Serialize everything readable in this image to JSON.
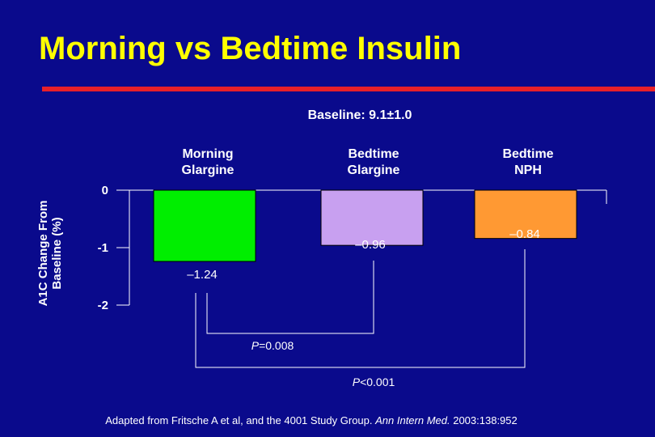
{
  "title": "Morning vs Bedtime Insulin",
  "baseline_label": "Baseline: 9.1±1.0",
  "colors": {
    "background": "#0a0a8c",
    "title": "#ffff00",
    "rule": "#e8202a",
    "axis": "#ffffff"
  },
  "chart_data": {
    "type": "bar",
    "categories": [
      {
        "line1": "Morning",
        "line2": "Glargine"
      },
      {
        "line1": "Bedtime",
        "line2": "Glargine"
      },
      {
        "line1": "Bedtime",
        "line2": "NPH"
      }
    ],
    "values": [
      -1.24,
      -0.96,
      -0.84
    ],
    "value_labels": [
      "–1.24",
      "–0.96",
      "–0.84"
    ],
    "bar_colors": [
      "#00ee00",
      "#c8a0f0",
      "#ff9933"
    ],
    "ylabel_line1": "A1C Change From",
    "ylabel_line2": "Baseline (%)",
    "ylim": [
      -2,
      0
    ],
    "yticks": [
      0,
      -1,
      -2
    ],
    "ytick_labels": [
      "0",
      "-1",
      "-2"
    ],
    "comparisons": [
      {
        "label_p": "P",
        "label_rest": "=0.008",
        "from": 0,
        "to": 1
      },
      {
        "label_p": "P",
        "label_rest": "<0.001",
        "from": 0,
        "to": 2
      }
    ]
  },
  "source": {
    "prefix": "Adapted from Fritsche A et al, and the 4001 Study Group. ",
    "journal": "Ann Intern Med.",
    "suffix": " 2003:138:952"
  }
}
